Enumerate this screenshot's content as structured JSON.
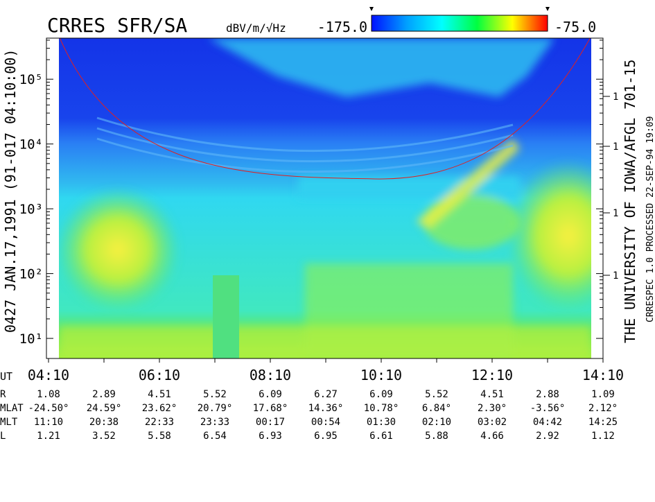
{
  "chart_data": {
    "type": "spectrogram",
    "title": "CRRES SFR/SA",
    "colorbar_label": "dBV/m/√Hz",
    "clim": [
      {
        "value": -175,
        "label": "-175.0"
      },
      {
        "value": -75,
        "label": "-75.0"
      }
    ],
    "colors": [
      "#0010ff",
      "#00a0ff",
      "#00ffff",
      "#00ff40",
      "#ffff00",
      "#ff0000"
    ],
    "y_scale": "log",
    "ylim": [
      4.9,
      430000
    ],
    "yticks": [
      {
        "value": 10,
        "label": "10¹"
      },
      {
        "value": 100,
        "label": "10²"
      },
      {
        "value": 1000,
        "label": "10³"
      },
      {
        "value": 10000,
        "label": "10⁴"
      },
      {
        "value": 100000,
        "label": "10⁵"
      }
    ],
    "right_axis_labels": [
      "1",
      "1",
      "1",
      "1"
    ],
    "x_label": "UT",
    "xticks": [
      "04:10",
      "06:10",
      "08:10",
      "10:10",
      "12:10",
      "14:10"
    ],
    "left_text": "0427   JAN.17,1991   (91-017 04:10:00)",
    "right_text": "THE UNIVERSITY OF IOWA/AFGL 701-15",
    "right_text_2": "CRRESPEC 1.0   PROCESSED 22-SEP-94   19:09"
  },
  "ephemeris": {
    "rows": [
      {
        "label": "R",
        "values": [
          "1.08",
          "2.89",
          "4.51",
          "5.52",
          "6.09",
          "6.27",
          "6.09",
          "5.52",
          "4.51",
          "2.88",
          "1.09"
        ]
      },
      {
        "label": "MLAT",
        "values": [
          "-24.50°",
          "24.59°",
          "23.62°",
          "20.79°",
          "17.68°",
          "14.36°",
          "10.78°",
          "6.84°",
          "2.30°",
          "-3.56°",
          "2.12°"
        ]
      },
      {
        "label": "MLT",
        "values": [
          "11:10",
          "20:38",
          "22:33",
          "23:33",
          "00:17",
          "00:54",
          "01:30",
          "02:10",
          "03:02",
          "04:42",
          "14:25"
        ]
      },
      {
        "label": "L",
        "values": [
          "1.21",
          "3.52",
          "5.58",
          "6.54",
          "6.93",
          "6.95",
          "6.61",
          "5.88",
          "4.66",
          "2.92",
          "1.12"
        ]
      }
    ]
  }
}
